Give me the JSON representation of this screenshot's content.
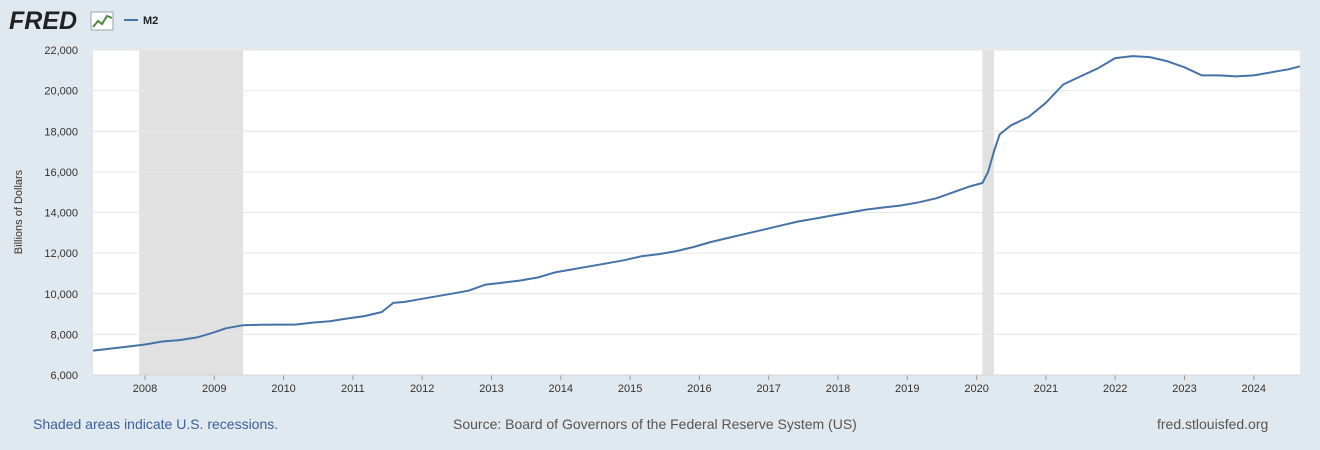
{
  "header": {
    "logo_text": "FRED",
    "logo_icon": "line-chart-icon",
    "legend_label": "M2"
  },
  "colors": {
    "page_background": "#e1e9f0",
    "plot_background": "#ffffff",
    "series_line": "#4572a7",
    "recession_shade": "#e1e1e1",
    "gridline": "#e6e6e6"
  },
  "footer": {
    "note": "Shaded areas indicate U.S. recessions.",
    "source": "Source: Board of Governors of the Federal Reserve System (US)",
    "site": "fred.stlouisfed.org"
  },
  "chart_data": {
    "type": "line",
    "title": "",
    "xlabel": "",
    "ylabel": "Billions of Dollars",
    "xlim": [
      "2007-04",
      "2024-09"
    ],
    "ylim": [
      6000,
      22000
    ],
    "grid": true,
    "legend_placement": "top-left",
    "x_ticks": [
      "2008",
      "2009",
      "2010",
      "2011",
      "2012",
      "2013",
      "2014",
      "2015",
      "2016",
      "2017",
      "2018",
      "2019",
      "2020",
      "2021",
      "2022",
      "2023",
      "2024"
    ],
    "y_ticks": [
      6000,
      8000,
      10000,
      12000,
      14000,
      16000,
      18000,
      20000,
      22000
    ],
    "y_tick_labels": [
      "6,000",
      "8,000",
      "10,000",
      "12,000",
      "14,000",
      "16,000",
      "18,000",
      "20,000",
      "22,000"
    ],
    "recessions": [
      {
        "start": "2007-12",
        "end": "2009-06"
      },
      {
        "start": "2020-02",
        "end": "2020-04"
      }
    ],
    "series": [
      {
        "name": "M2",
        "points": [
          [
            "2007-04",
            7200
          ],
          [
            "2007-07",
            7300
          ],
          [
            "2007-10",
            7400
          ],
          [
            "2008-01",
            7500
          ],
          [
            "2008-04",
            7650
          ],
          [
            "2008-07",
            7720
          ],
          [
            "2008-10",
            7850
          ],
          [
            "2009-01",
            8100
          ],
          [
            "2009-03",
            8300
          ],
          [
            "2009-06",
            8450
          ],
          [
            "2009-09",
            8470
          ],
          [
            "2009-12",
            8480
          ],
          [
            "2010-03",
            8480
          ],
          [
            "2010-06",
            8580
          ],
          [
            "2010-09",
            8650
          ],
          [
            "2010-12",
            8780
          ],
          [
            "2011-03",
            8900
          ],
          [
            "2011-06",
            9100
          ],
          [
            "2011-08",
            9550
          ],
          [
            "2011-10",
            9600
          ],
          [
            "2011-12",
            9700
          ],
          [
            "2012-03",
            9850
          ],
          [
            "2012-06",
            10000
          ],
          [
            "2012-09",
            10150
          ],
          [
            "2012-12",
            10450
          ],
          [
            "2013-03",
            10550
          ],
          [
            "2013-06",
            10650
          ],
          [
            "2013-09",
            10800
          ],
          [
            "2013-12",
            11050
          ],
          [
            "2014-03",
            11200
          ],
          [
            "2014-06",
            11350
          ],
          [
            "2014-09",
            11500
          ],
          [
            "2014-12",
            11650
          ],
          [
            "2015-03",
            11850
          ],
          [
            "2015-06",
            11950
          ],
          [
            "2015-09",
            12100
          ],
          [
            "2015-12",
            12300
          ],
          [
            "2016-03",
            12550
          ],
          [
            "2016-06",
            12750
          ],
          [
            "2016-09",
            12950
          ],
          [
            "2016-12",
            13150
          ],
          [
            "2017-03",
            13350
          ],
          [
            "2017-06",
            13550
          ],
          [
            "2017-09",
            13700
          ],
          [
            "2017-12",
            13850
          ],
          [
            "2018-03",
            14000
          ],
          [
            "2018-06",
            14150
          ],
          [
            "2018-09",
            14250
          ],
          [
            "2018-12",
            14350
          ],
          [
            "2019-03",
            14500
          ],
          [
            "2019-06",
            14700
          ],
          [
            "2019-09",
            15000
          ],
          [
            "2019-12",
            15300
          ],
          [
            "2020-02",
            15450
          ],
          [
            "2020-03",
            16000
          ],
          [
            "2020-04",
            17000
          ],
          [
            "2020-05",
            17850
          ],
          [
            "2020-07",
            18300
          ],
          [
            "2020-10",
            18700
          ],
          [
            "2021-01",
            19400
          ],
          [
            "2021-04",
            20300
          ],
          [
            "2021-07",
            20700
          ],
          [
            "2021-10",
            21100
          ],
          [
            "2022-01",
            21600
          ],
          [
            "2022-04",
            21700
          ],
          [
            "2022-07",
            21650
          ],
          [
            "2022-10",
            21450
          ],
          [
            "2023-01",
            21150
          ],
          [
            "2023-04",
            20750
          ],
          [
            "2023-07",
            20750
          ],
          [
            "2023-10",
            20700
          ],
          [
            "2024-01",
            20750
          ],
          [
            "2024-04",
            20900
          ],
          [
            "2024-07",
            21050
          ],
          [
            "2024-09",
            21200
          ]
        ]
      }
    ]
  }
}
